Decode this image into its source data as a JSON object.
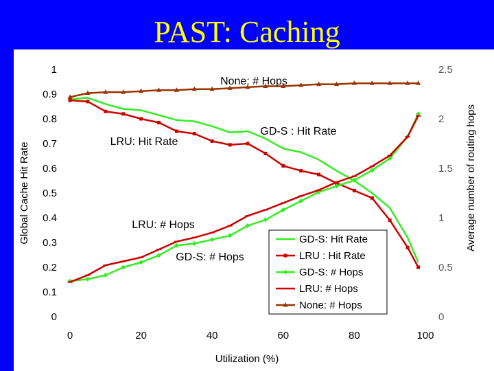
{
  "slide": {
    "title": "PAST: Caching"
  },
  "colors": {
    "background": "#0000ff",
    "title": "#ffff00",
    "gds": "#33ee22",
    "lru": "#cc0000",
    "none": "#993300"
  },
  "chart_data": {
    "type": "line",
    "xlabel": "Utilization (%)",
    "ylabel": "Global Cache Hit Rate",
    "y2label": "Average number of routing hops",
    "xlim": [
      0,
      100
    ],
    "ylim": [
      0,
      1
    ],
    "y2lim": [
      0,
      2.5
    ],
    "x_ticks": [
      "0",
      "20",
      "40",
      "60",
      "80",
      "100"
    ],
    "y_ticks": [
      "0",
      "0.1",
      "0.2",
      "0.3",
      "0.4",
      "0.5",
      "0.6",
      "0.7",
      "0.8",
      "0.9",
      "1"
    ],
    "y2_ticks": [
      "0",
      "0.5",
      "1",
      "1.5",
      "2",
      "2.5"
    ],
    "grid": false,
    "legend_position": "bottom-right",
    "annotations": [
      "None: # Hops",
      "LRU: Hit Rate",
      "GD-S : Hit Rate",
      "LRU: # Hops",
      "GD-S: # Hops"
    ],
    "series": [
      {
        "name": "GD-S: Hit Rate",
        "axis": "left",
        "color": "#33ee22",
        "marker": "none",
        "x": [
          0,
          5,
          10,
          15,
          20,
          25,
          30,
          35,
          40,
          45,
          50,
          55,
          60,
          65,
          70,
          75,
          80,
          85,
          90,
          95,
          98
        ],
        "y": [
          0.88,
          0.885,
          0.86,
          0.84,
          0.835,
          0.815,
          0.795,
          0.79,
          0.77,
          0.745,
          0.75,
          0.72,
          0.68,
          0.665,
          0.635,
          0.59,
          0.55,
          0.5,
          0.44,
          0.32,
          0.22
        ]
      },
      {
        "name": "LRU : Hit Rate",
        "axis": "left",
        "color": "#cc0000",
        "marker": "square",
        "x": [
          0,
          5,
          10,
          15,
          20,
          25,
          30,
          35,
          40,
          45,
          50,
          55,
          60,
          65,
          70,
          75,
          80,
          85,
          90,
          95,
          98
        ],
        "y": [
          0.875,
          0.87,
          0.83,
          0.82,
          0.8,
          0.785,
          0.75,
          0.74,
          0.71,
          0.695,
          0.7,
          0.66,
          0.61,
          0.59,
          0.575,
          0.54,
          0.51,
          0.48,
          0.39,
          0.28,
          0.2
        ]
      },
      {
        "name": "GD-S: # Hops",
        "axis": "right",
        "color": "#33ee22",
        "marker": "diamond",
        "x": [
          0,
          5,
          10,
          15,
          20,
          25,
          30,
          35,
          40,
          45,
          50,
          55,
          60,
          65,
          70,
          75,
          80,
          85,
          90,
          95,
          98
        ],
        "y": [
          0.36,
          0.38,
          0.42,
          0.5,
          0.55,
          0.62,
          0.72,
          0.74,
          0.78,
          0.82,
          0.92,
          0.98,
          1.08,
          1.17,
          1.26,
          1.32,
          1.38,
          1.48,
          1.6,
          1.82,
          2.05
        ]
      },
      {
        "name": "LRU: # Hops",
        "axis": "right",
        "color": "#cc0000",
        "marker": "dash",
        "x": [
          0,
          5,
          10,
          15,
          20,
          25,
          30,
          35,
          40,
          45,
          50,
          55,
          60,
          65,
          70,
          75,
          80,
          85,
          90,
          95,
          98
        ],
        "y": [
          0.35,
          0.42,
          0.52,
          0.56,
          0.6,
          0.68,
          0.76,
          0.8,
          0.85,
          0.92,
          1.02,
          1.08,
          1.15,
          1.22,
          1.28,
          1.36,
          1.42,
          1.52,
          1.63,
          1.82,
          2.03
        ]
      },
      {
        "name": "None: # Hops",
        "axis": "right",
        "color": "#993300",
        "marker": "triangle",
        "x": [
          0,
          5,
          10,
          15,
          20,
          25,
          30,
          35,
          40,
          45,
          50,
          55,
          60,
          65,
          70,
          75,
          80,
          85,
          90,
          95,
          98
        ],
        "y": [
          2.22,
          2.26,
          2.27,
          2.27,
          2.28,
          2.29,
          2.29,
          2.3,
          2.3,
          2.31,
          2.32,
          2.33,
          2.33,
          2.34,
          2.35,
          2.35,
          2.36,
          2.36,
          2.36,
          2.36,
          2.36
        ]
      }
    ]
  }
}
